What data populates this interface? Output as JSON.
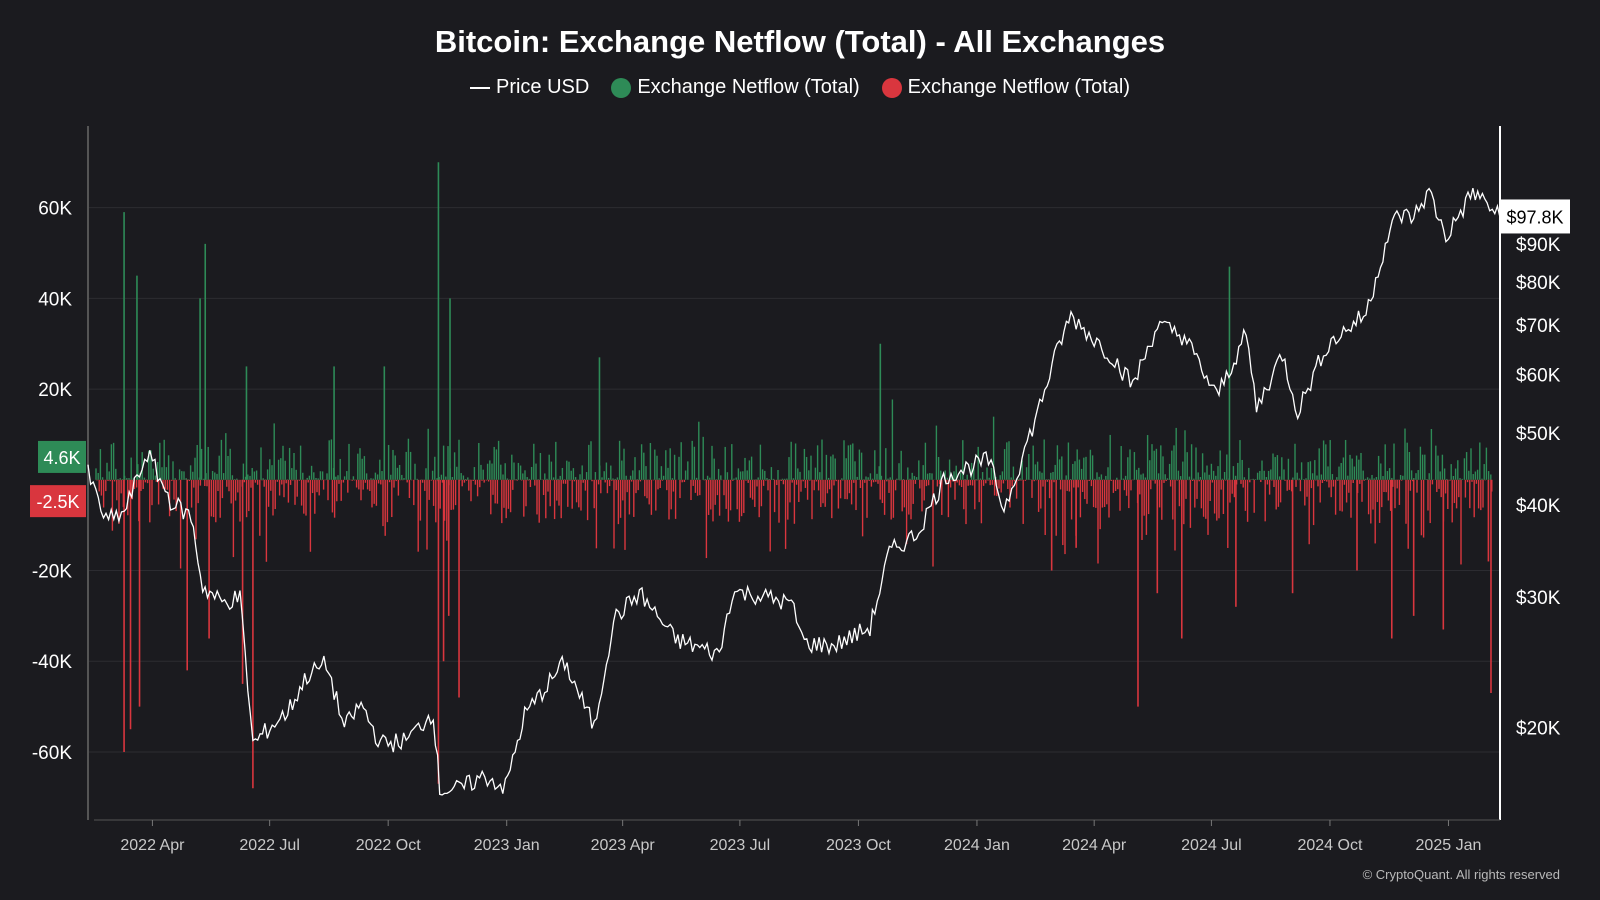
{
  "chart_data": {
    "type": "bar",
    "title": "Bitcoin: Exchange Netflow (Total) - All Exchanges",
    "legend": [
      {
        "label": "Price USD",
        "color": "#ffffff",
        "marker": "line"
      },
      {
        "label": "Exchange Netflow (Total)",
        "color": "#2e8b57",
        "marker": "dot"
      },
      {
        "label": "Exchange Netflow (Total)",
        "color": "#d9363e",
        "marker": "dot"
      }
    ],
    "x_range": [
      "2022-02-10",
      "2025-02-10"
    ],
    "x_ticks": [
      "2022 Apr",
      "2022 Jul",
      "2022 Oct",
      "2023 Jan",
      "2023 Apr",
      "2023 Jul",
      "2023 Oct",
      "2024 Jan",
      "2024 Apr",
      "2024 Jul",
      "2024 Oct",
      "2025 Jan"
    ],
    "y_left": {
      "ticks": [
        60000,
        40000,
        20000,
        -20000,
        -40000,
        -60000
      ],
      "tick_labels": [
        "60K",
        "40K",
        "20K",
        "-20K",
        "-40K",
        "-60K"
      ],
      "ylim": [
        -75000,
        78000
      ]
    },
    "y_right": {
      "scale": "log",
      "ticks": [
        90000,
        80000,
        70000,
        60000,
        50000,
        40000,
        30000,
        20000
      ],
      "tick_labels": [
        "$90K",
        "$80K",
        "$70K",
        "$60K",
        "$50K",
        "$40K",
        "$30K",
        "$20K"
      ],
      "ylim": [
        15000,
        130000
      ]
    },
    "current_labels": {
      "inflow": "4.6K",
      "outflow": "-2.5K",
      "price": "$97.8K"
    },
    "spikes": [
      {
        "date": "2022-03-10",
        "value": 59000
      },
      {
        "date": "2022-03-10",
        "value": -60000
      },
      {
        "date": "2022-03-15",
        "value": -55000
      },
      {
        "date": "2022-03-20",
        "value": 45000
      },
      {
        "date": "2022-03-22",
        "value": -50000
      },
      {
        "date": "2022-05-12",
        "value": 52000
      },
      {
        "date": "2022-05-08",
        "value": 40000
      },
      {
        "date": "2022-04-28",
        "value": -42000
      },
      {
        "date": "2022-05-15",
        "value": -35000
      },
      {
        "date": "2022-06-13",
        "value": 25000
      },
      {
        "date": "2022-06-18",
        "value": -68000
      },
      {
        "date": "2022-06-10",
        "value": -45000
      },
      {
        "date": "2022-08-20",
        "value": 25000
      },
      {
        "date": "2022-09-28",
        "value": 25000
      },
      {
        "date": "2022-11-09",
        "value": 70000
      },
      {
        "date": "2022-11-09",
        "value": -67000
      },
      {
        "date": "2022-11-13",
        "value": -40000
      },
      {
        "date": "2022-11-18",
        "value": 40000
      },
      {
        "date": "2022-11-25",
        "value": -48000
      },
      {
        "date": "2022-11-17",
        "value": -30000
      },
      {
        "date": "2023-03-14",
        "value": 27000
      },
      {
        "date": "2023-10-18",
        "value": 30000
      },
      {
        "date": "2024-07-15",
        "value": 47000
      },
      {
        "date": "2024-05-05",
        "value": -50000
      },
      {
        "date": "2024-05-20",
        "value": -25000
      },
      {
        "date": "2024-03-18",
        "value": -15000
      },
      {
        "date": "2024-02-28",
        "value": -20000
      },
      {
        "date": "2024-07-20",
        "value": -28000
      },
      {
        "date": "2024-06-08",
        "value": -35000
      },
      {
        "date": "2024-09-02",
        "value": -25000
      },
      {
        "date": "2024-11-18",
        "value": -35000
      },
      {
        "date": "2024-12-05",
        "value": -30000
      },
      {
        "date": "2024-12-28",
        "value": -33000
      },
      {
        "date": "2025-02-03",
        "value": -47000
      },
      {
        "date": "2025-02-01",
        "value": -18000
      },
      {
        "date": "2024-10-22",
        "value": -20000
      }
    ],
    "price_series": [
      {
        "date": "2022-02-10",
        "price": 44000
      },
      {
        "date": "2022-02-24",
        "price": 38000
      },
      {
        "date": "2022-03-10",
        "price": 39000
      },
      {
        "date": "2022-03-28",
        "price": 47000
      },
      {
        "date": "2022-04-15",
        "price": 40500
      },
      {
        "date": "2022-05-01",
        "price": 38500
      },
      {
        "date": "2022-05-10",
        "price": 31000
      },
      {
        "date": "2022-05-25",
        "price": 29500
      },
      {
        "date": "2022-06-08",
        "price": 30000
      },
      {
        "date": "2022-06-18",
        "price": 19000
      },
      {
        "date": "2022-07-01",
        "price": 20000
      },
      {
        "date": "2022-07-15",
        "price": 21000
      },
      {
        "date": "2022-07-30",
        "price": 23500
      },
      {
        "date": "2022-08-14",
        "price": 24400
      },
      {
        "date": "2022-08-28",
        "price": 20000
      },
      {
        "date": "2022-09-10",
        "price": 21500
      },
      {
        "date": "2022-09-25",
        "price": 19000
      },
      {
        "date": "2022-10-15",
        "price": 19200
      },
      {
        "date": "2022-11-05",
        "price": 21000
      },
      {
        "date": "2022-11-10",
        "price": 16500
      },
      {
        "date": "2022-11-25",
        "price": 16500
      },
      {
        "date": "2022-12-15",
        "price": 17200
      },
      {
        "date": "2022-12-31",
        "price": 16600
      },
      {
        "date": "2023-01-15",
        "price": 20800
      },
      {
        "date": "2023-02-15",
        "price": 24500
      },
      {
        "date": "2023-03-10",
        "price": 20000
      },
      {
        "date": "2023-03-25",
        "price": 28000
      },
      {
        "date": "2023-04-14",
        "price": 30400
      },
      {
        "date": "2023-05-12",
        "price": 26300
      },
      {
        "date": "2023-06-15",
        "price": 25100
      },
      {
        "date": "2023-06-25",
        "price": 30500
      },
      {
        "date": "2023-07-15",
        "price": 30200
      },
      {
        "date": "2023-08-10",
        "price": 29400
      },
      {
        "date": "2023-08-20",
        "price": 26000
      },
      {
        "date": "2023-09-12",
        "price": 25800
      },
      {
        "date": "2023-10-10",
        "price": 27300
      },
      {
        "date": "2023-10-25",
        "price": 34500
      },
      {
        "date": "2023-11-15",
        "price": 36500
      },
      {
        "date": "2023-12-08",
        "price": 43800
      },
      {
        "date": "2024-01-10",
        "price": 46000
      },
      {
        "date": "2024-01-22",
        "price": 39500
      },
      {
        "date": "2024-02-15",
        "price": 52000
      },
      {
        "date": "2024-03-05",
        "price": 66000
      },
      {
        "date": "2024-03-14",
        "price": 72000
      },
      {
        "date": "2024-04-01",
        "price": 67000
      },
      {
        "date": "2024-04-15",
        "price": 63500
      },
      {
        "date": "2024-05-01",
        "price": 58000
      },
      {
        "date": "2024-05-20",
        "price": 70000
      },
      {
        "date": "2024-06-10",
        "price": 67500
      },
      {
        "date": "2024-07-05",
        "price": 56000
      },
      {
        "date": "2024-07-28",
        "price": 68000
      },
      {
        "date": "2024-08-05",
        "price": 54000
      },
      {
        "date": "2024-08-25",
        "price": 64000
      },
      {
        "date": "2024-09-06",
        "price": 53500
      },
      {
        "date": "2024-09-28",
        "price": 65500
      },
      {
        "date": "2024-10-29",
        "price": 72500
      },
      {
        "date": "2024-11-13",
        "price": 90000
      },
      {
        "date": "2024-11-22",
        "price": 98500
      },
      {
        "date": "2024-12-05",
        "price": 98000
      },
      {
        "date": "2024-12-17",
        "price": 106000
      },
      {
        "date": "2024-12-30",
        "price": 92000
      },
      {
        "date": "2025-01-20",
        "price": 106000
      },
      {
        "date": "2025-01-31",
        "price": 102000
      },
      {
        "date": "2025-02-10",
        "price": 97800
      }
    ],
    "grid": true
  },
  "watermark": "© CryptoQuant. All rights reserved",
  "colors": {
    "background": "#1b1b1f",
    "inflow": "#2e8b57",
    "outflow": "#d9363e",
    "price": "#ffffff",
    "grid": "#2c2c31"
  }
}
